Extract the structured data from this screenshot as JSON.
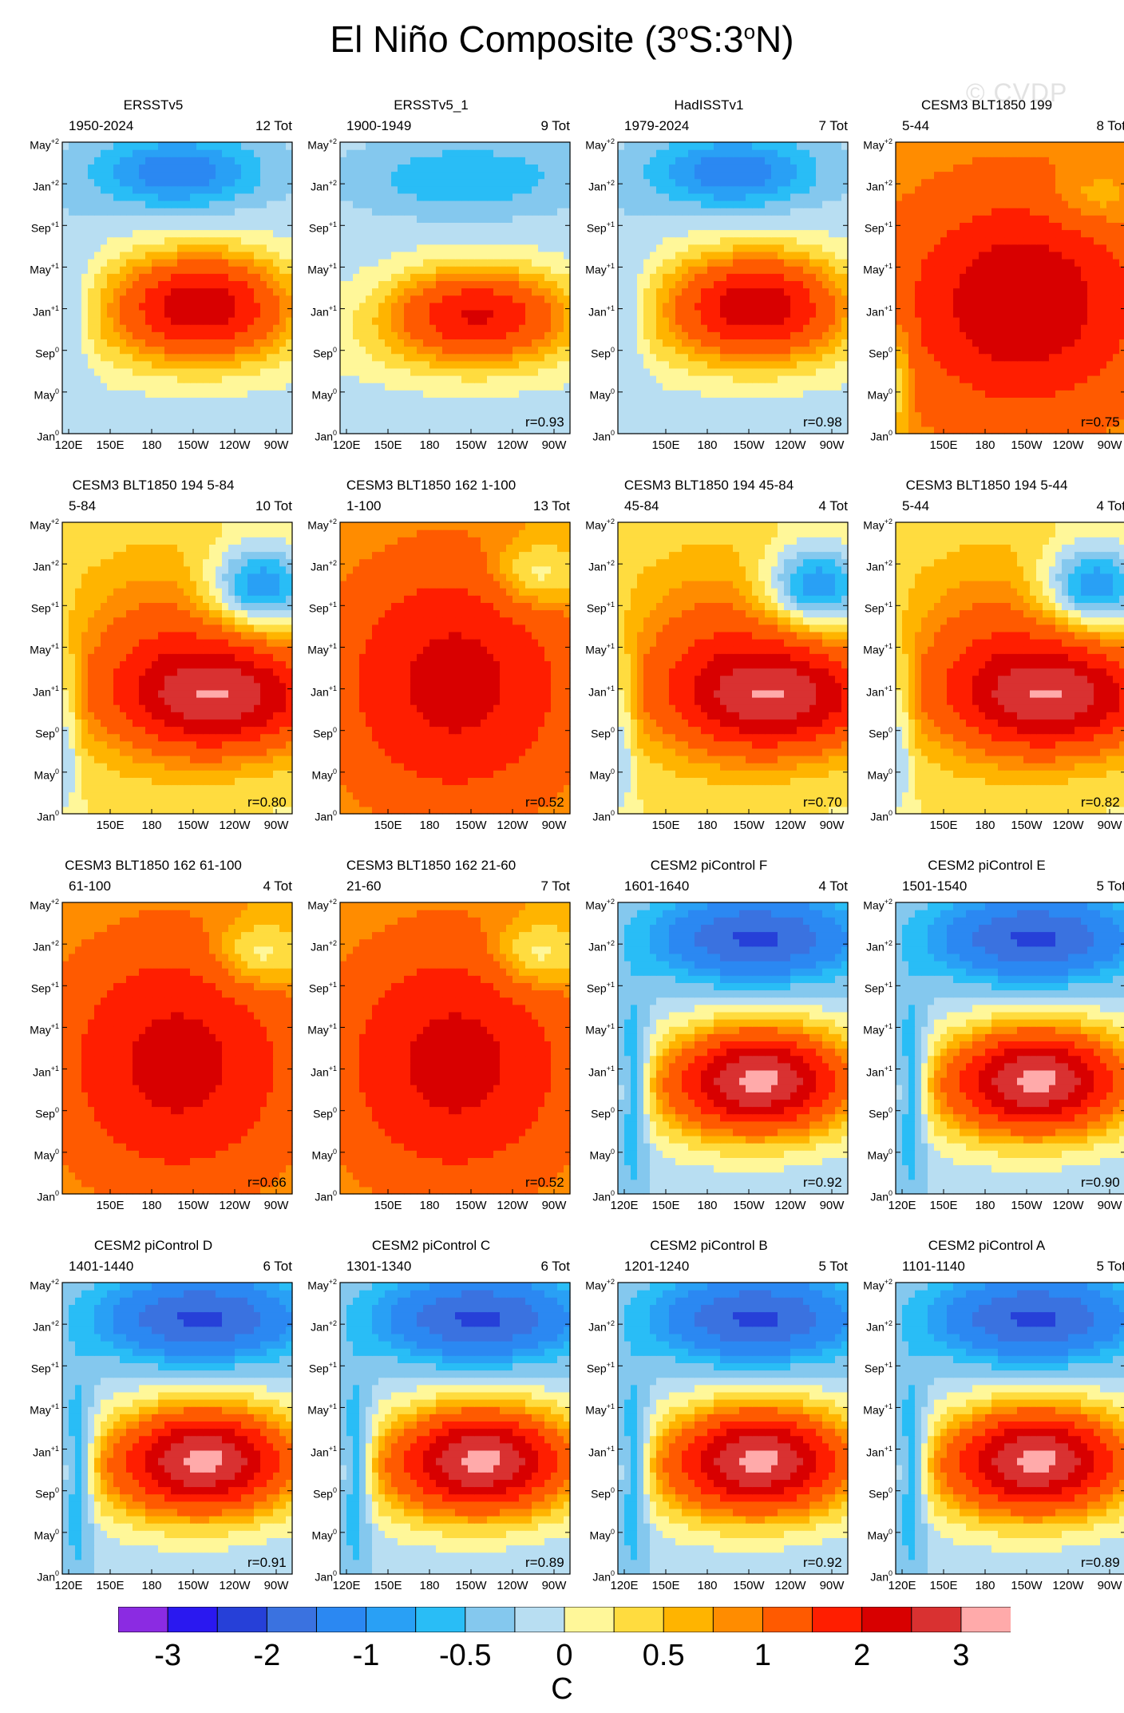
{
  "title": "El Niño Composite (3°S:3°N)",
  "title_parts": {
    "pre": "El Niño Composite (3",
    "deg1": "o",
    "mid": "S:3",
    "deg2": "o",
    "post": "N)"
  },
  "watermark": "© CVDP",
  "chart_data": {
    "type": "heatmap",
    "y_ticks": [
      {
        "base": "Jan",
        "sup": "0"
      },
      {
        "base": "May",
        "sup": "0"
      },
      {
        "base": "Sep",
        "sup": "0"
      },
      {
        "base": "Jan",
        "sup": "+1"
      },
      {
        "base": "May",
        "sup": "+1"
      },
      {
        "base": "Sep",
        "sup": "+1"
      },
      {
        "base": "Jan",
        "sup": "+2"
      },
      {
        "base": "May",
        "sup": "+2"
      }
    ],
    "x_ticks": [
      "120E",
      "150E",
      "180",
      "150W",
      "120W",
      "90W"
    ],
    "colorbar": {
      "labels": [
        "-3",
        "-2",
        "-1",
        "-0.5",
        "0",
        "0.5",
        "1",
        "2",
        "3"
      ],
      "unit": "C",
      "colors": [
        "#8b2be2",
        "#2a18f0",
        "#2640d8",
        "#3a72e0",
        "#2b88f2",
        "#29a0f5",
        "#29bdf6",
        "#84c8ee",
        "#b8def2",
        "#fff799",
        "#ffdc3f",
        "#ffb400",
        "#ff8c00",
        "#ff5a00",
        "#ff1e00",
        "#d80000",
        "#d93131",
        "#ffaaaa"
      ]
    },
    "panels": [
      {
        "title": "ERSSTv5",
        "years": "1950-2024",
        "tot": "12 Tot",
        "r": "",
        "pattern": "obs",
        "x_ticks_shown": [
          0,
          1,
          2,
          3,
          4,
          5
        ]
      },
      {
        "title": "ERSSTv5_1",
        "years": "1900-1949",
        "tot": "9 Tot",
        "r": "r=0.93",
        "pattern": "obs2",
        "x_ticks_shown": [
          0,
          1,
          2,
          3,
          4,
          5
        ]
      },
      {
        "title": "HadISSTv1",
        "years": "1979-2024",
        "tot": "7 Tot",
        "r": "r=0.98",
        "pattern": "obs",
        "x_ticks_shown": [
          1,
          2,
          3,
          4,
          5
        ]
      },
      {
        "title": "CESM3 BLT1850 199",
        "years": "5-44",
        "tot": "8 Tot",
        "r": "r=0.75",
        "pattern": "cesm3",
        "x_ticks_shown": [
          1,
          2,
          3,
          4,
          5
        ]
      },
      {
        "title": "CESM3 BLT1850 194 5-84",
        "years": "5-84",
        "tot": "10 Tot",
        "r": "r=0.80",
        "pattern": "cesm3b",
        "x_ticks_shown": [
          1,
          2,
          3,
          4,
          5
        ]
      },
      {
        "title": "CESM3 BLT1850 162 1-100",
        "years": "1-100",
        "tot": "13 Tot",
        "r": "r=0.52",
        "pattern": "cesm3c",
        "x_ticks_shown": [
          1,
          2,
          3,
          4,
          5
        ]
      },
      {
        "title": "CESM3 BLT1850 194 45-84",
        "years": "45-84",
        "tot": "4 Tot",
        "r": "r=0.70",
        "pattern": "cesm3b",
        "x_ticks_shown": [
          1,
          2,
          3,
          4,
          5
        ]
      },
      {
        "title": "CESM3 BLT1850 194 5-44",
        "years": "5-44",
        "tot": "4 Tot",
        "r": "r=0.82",
        "pattern": "cesm3b",
        "x_ticks_shown": [
          1,
          2,
          3,
          4,
          5
        ]
      },
      {
        "title": "CESM3 BLT1850 162 61-100",
        "years": "61-100",
        "tot": "4 Tot",
        "r": "r=0.66",
        "pattern": "cesm3c",
        "x_ticks_shown": [
          1,
          2,
          3,
          4,
          5
        ]
      },
      {
        "title": "CESM3 BLT1850 162 21-60",
        "years": "21-60",
        "tot": "7 Tot",
        "r": "r=0.52",
        "pattern": "cesm3c",
        "x_ticks_shown": [
          1,
          2,
          3,
          4,
          5
        ]
      },
      {
        "title": "CESM2 piControl F",
        "years": "1601-1640",
        "tot": "4 Tot",
        "r": "r=0.92",
        "pattern": "cesm2",
        "x_ticks_shown": [
          0,
          1,
          2,
          3,
          4,
          5
        ]
      },
      {
        "title": "CESM2 piControl E",
        "years": "1501-1540",
        "tot": "5 Tot",
        "r": "r=0.90",
        "pattern": "cesm2",
        "x_ticks_shown": [
          0,
          1,
          2,
          3,
          4,
          5
        ]
      },
      {
        "title": "CESM2 piControl D",
        "years": "1401-1440",
        "tot": "6 Tot",
        "r": "r=0.91",
        "pattern": "cesm2",
        "x_ticks_shown": [
          0,
          1,
          2,
          3,
          4,
          5
        ]
      },
      {
        "title": "CESM2 piControl C",
        "years": "1301-1340",
        "tot": "6 Tot",
        "r": "r=0.89",
        "pattern": "cesm2",
        "x_ticks_shown": [
          0,
          1,
          2,
          3,
          4,
          5
        ]
      },
      {
        "title": "CESM2 piControl B",
        "years": "1201-1240",
        "tot": "5 Tot",
        "r": "r=0.92",
        "pattern": "cesm2",
        "x_ticks_shown": [
          0,
          1,
          2,
          3,
          4,
          5
        ]
      },
      {
        "title": "CESM2 piControl A",
        "years": "1101-1140",
        "tot": "5 Tot",
        "r": "r=0.89",
        "pattern": "cesm2",
        "x_ticks_shown": [
          0,
          1,
          2,
          3,
          4,
          5
        ]
      }
    ]
  }
}
